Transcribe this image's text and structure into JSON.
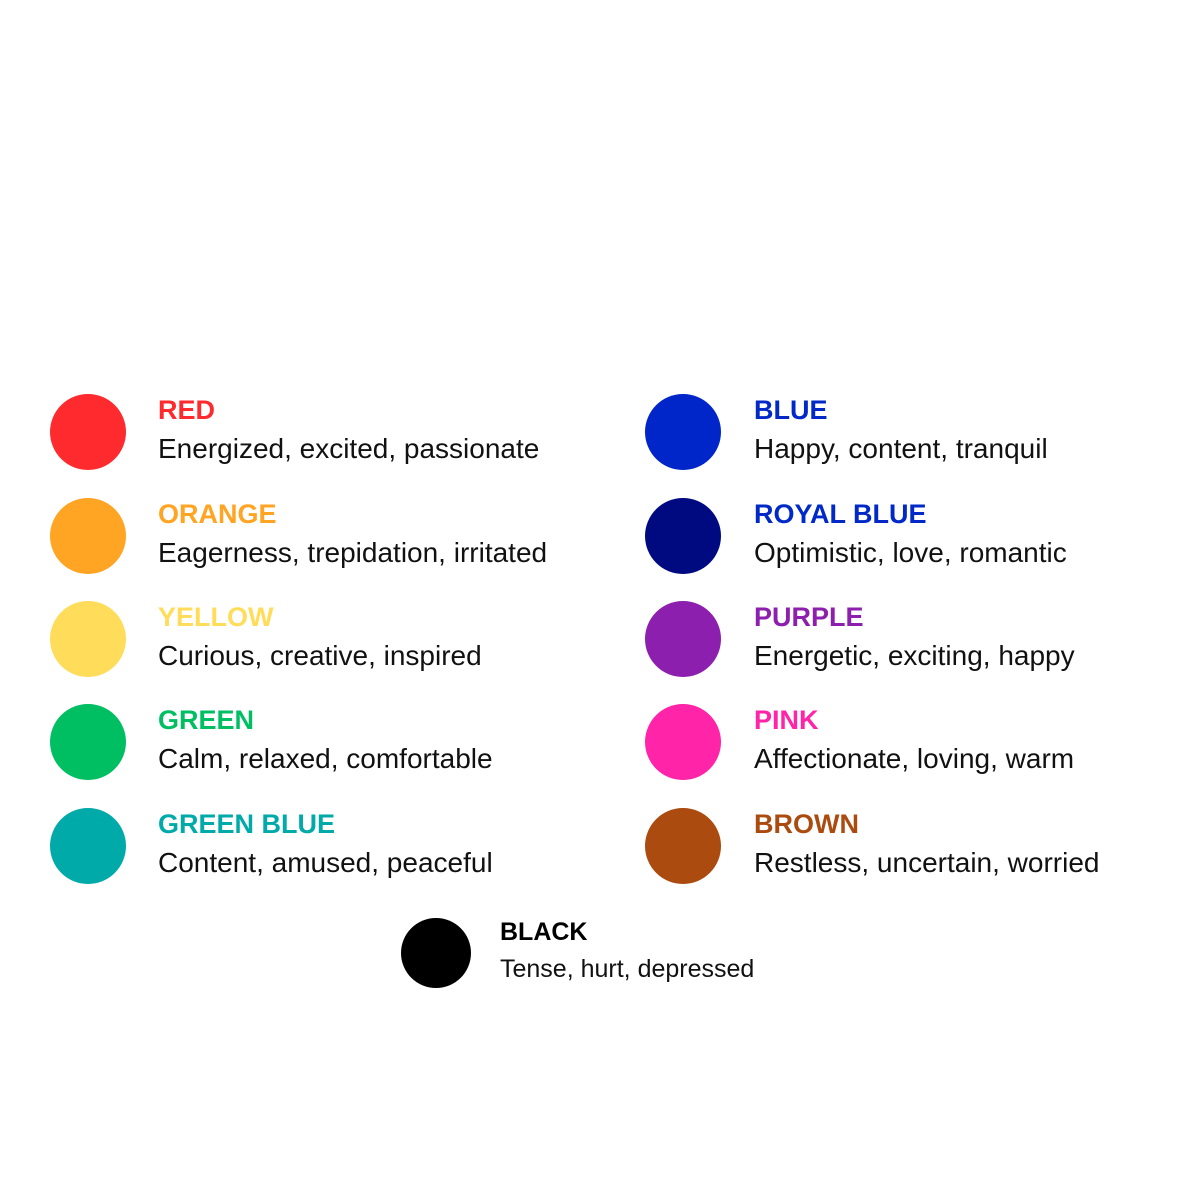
{
  "items": [
    {
      "name": "RED",
      "description": "Energized, excited, passionate",
      "color": "#ff2a2d",
      "text_color": "#ff2a2d"
    },
    {
      "name": "ORANGE",
      "description": "Eagerness, trepidation, irritated",
      "color": "#ffa523",
      "text_color": "#ffa523"
    },
    {
      "name": "YELLOW",
      "description": "Curious, creative, inspired",
      "color": "#ffdd5a",
      "text_color": "#ffdd5a"
    },
    {
      "name": "GREEN",
      "description": "Calm, relaxed, comfortable",
      "color": "#00bf63",
      "text_color": "#00bf63"
    },
    {
      "name": "GREEN BLUE",
      "description": "Content, amused, peaceful",
      "color": "#00aaa9",
      "text_color": "#00aaa9"
    },
    {
      "name": "BLUE",
      "description": "Happy, content, tranquil",
      "color": "#0026c9",
      "text_color": "#0029c8"
    },
    {
      "name": "ROYAL BLUE",
      "description": "Optimistic, love, romantic",
      "color": "#000a80",
      "text_color": "#0029c8"
    },
    {
      "name": "PURPLE",
      "description": "Energetic, exciting, happy",
      "color": "#8d1fae",
      "text_color": "#8d1fae"
    },
    {
      "name": "PINK",
      "description": "Affectionate, loving, warm",
      "color": "#ff24a8",
      "text_color": "#ff24a8"
    },
    {
      "name": "BROWN",
      "description": "Restless, uncertain, worried",
      "color": "#ab4b10",
      "text_color": "#ab4b10"
    },
    {
      "name": "BLACK",
      "description": "Tense, hurt, depressed",
      "color": "#000000",
      "text_color": "#000000"
    }
  ]
}
